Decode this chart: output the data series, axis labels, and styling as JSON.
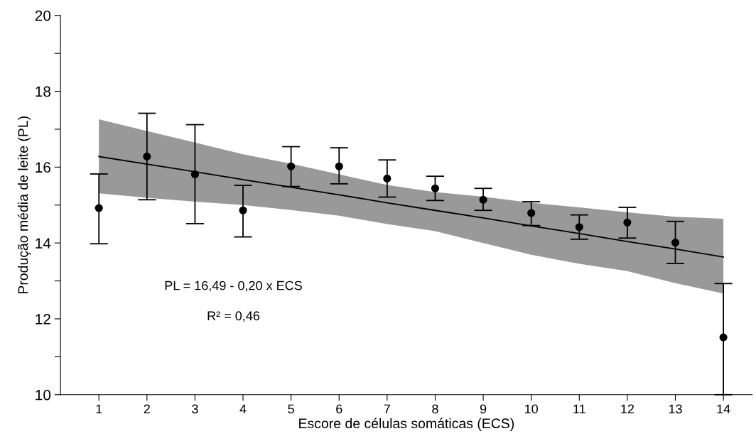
{
  "chart_data": {
    "type": "scatter",
    "xlabel": "Escore de células somáticas (ECS)",
    "ylabel": "Produção média de leite (PL)",
    "x": [
      1,
      2,
      3,
      4,
      5,
      6,
      7,
      8,
      9,
      10,
      11,
      12,
      13,
      14
    ],
    "series": [
      {
        "color": "#000000",
        "marker": "circle",
        "values": [
          14.92,
          16.28,
          15.81,
          14.86,
          16.02,
          16.02,
          15.7,
          15.44,
          15.14,
          14.79,
          14.42,
          14.54,
          14.01,
          11.51
        ],
        "errors": [
          [
            13.98,
            15.82
          ],
          [
            15.14,
            17.42
          ],
          [
            14.51,
            17.12
          ],
          [
            14.16,
            15.52
          ],
          [
            15.49,
            16.54
          ],
          [
            15.56,
            16.51
          ],
          [
            15.21,
            16.19
          ],
          [
            15.12,
            15.76
          ],
          [
            14.86,
            15.44
          ],
          [
            14.46,
            15.09
          ],
          [
            14.1,
            14.74
          ],
          [
            14.13,
            14.94
          ],
          [
            13.46,
            14.57
          ],
          [
            10.0,
            12.93
          ]
        ]
      },
      {
        "type": "line",
        "color": "#000000",
        "x": [
          1,
          2,
          3,
          4,
          5,
          6,
          7,
          8,
          9,
          10,
          11,
          12,
          13,
          14
        ],
        "values": [
          16.28,
          16.08,
          15.88,
          15.67,
          15.47,
          15.27,
          15.06,
          14.86,
          14.66,
          14.45,
          14.25,
          14.04,
          13.84,
          13.63
        ],
        "lower": [
          15.31,
          15.19,
          15.09,
          15.0,
          14.87,
          14.72,
          14.5,
          14.31,
          14.0,
          13.69,
          13.45,
          13.26,
          12.94,
          12.67
        ],
        "upper": [
          17.26,
          16.95,
          16.65,
          16.34,
          16.09,
          15.81,
          15.53,
          15.34,
          15.22,
          15.06,
          14.94,
          14.81,
          14.69,
          14.64
        ]
      }
    ],
    "xlim": [
      0.2,
      14.6
    ],
    "ylim": [
      10,
      20
    ],
    "xticks": [
      1,
      2,
      3,
      4,
      5,
      6,
      7,
      8,
      9,
      10,
      11,
      12,
      13,
      14
    ],
    "yticks": [
      10,
      {
        "value": 11,
        "label": null
      },
      12,
      {
        "value": 13,
        "label": null
      },
      14,
      {
        "value": 15,
        "label": null
      },
      16,
      {
        "value": 17,
        "label": null
      },
      18,
      {
        "value": 19,
        "label": null
      },
      20
    ],
    "annotations": [
      "PL = 16,49 - 0,20 x ECS",
      "R² = 0,46"
    ],
    "grid": false,
    "legend": false
  }
}
